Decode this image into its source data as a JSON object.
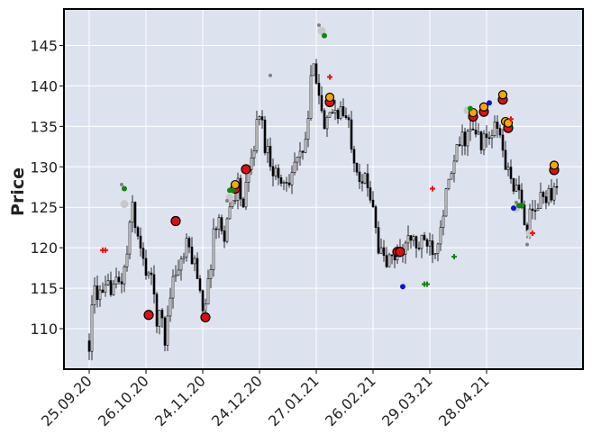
{
  "chart_data": {
    "type": "candlestick",
    "ylabel": "Price",
    "ylim": [
      105.0,
      149.5
    ],
    "y_ticks": [
      110,
      115,
      120,
      125,
      130,
      135,
      140,
      145
    ],
    "x_tick_labels": [
      "25.09.20",
      "26.10.20",
      "24.11.20",
      "24.12.20",
      "27.01.21",
      "26.02.21",
      "29.03.21",
      "28.04.21"
    ],
    "x_tick_index": [
      0,
      21,
      42,
      63,
      84,
      105,
      126,
      147
    ],
    "n_candles": 174,
    "price_path": [
      {
        "i": 0,
        "p": 108.5
      },
      {
        "i": 2,
        "p": 115
      },
      {
        "i": 5,
        "p": 113.5
      },
      {
        "i": 8,
        "p": 115.5
      },
      {
        "i": 11,
        "p": 115.5
      },
      {
        "i": 13,
        "p": 117
      },
      {
        "i": 15,
        "p": 122
      },
      {
        "i": 16,
        "p": 125.5
      },
      {
        "i": 18,
        "p": 121
      },
      {
        "i": 20,
        "p": 118
      },
      {
        "i": 22,
        "p": 117
      },
      {
        "i": 24,
        "p": 114
      },
      {
        "i": 25,
        "p": 111.5
      },
      {
        "i": 27,
        "p": 111
      },
      {
        "i": 28,
        "p": 108.5
      },
      {
        "i": 30,
        "p": 115
      },
      {
        "i": 32,
        "p": 117
      },
      {
        "i": 34,
        "p": 118
      },
      {
        "i": 36,
        "p": 120
      },
      {
        "i": 38,
        "p": 119
      },
      {
        "i": 40,
        "p": 117
      },
      {
        "i": 42,
        "p": 113
      },
      {
        "i": 44,
        "p": 115
      },
      {
        "i": 46,
        "p": 122
      },
      {
        "i": 48,
        "p": 123
      },
      {
        "i": 50,
        "p": 122
      },
      {
        "i": 53,
        "p": 126
      },
      {
        "i": 55,
        "p": 128
      },
      {
        "i": 57,
        "p": 125
      },
      {
        "i": 60,
        "p": 131
      },
      {
        "i": 63,
        "p": 137
      },
      {
        "i": 65,
        "p": 133
      },
      {
        "i": 68,
        "p": 130
      },
      {
        "i": 71,
        "p": 128
      },
      {
        "i": 74,
        "p": 129
      },
      {
        "i": 77,
        "p": 131
      },
      {
        "i": 79,
        "p": 131
      },
      {
        "i": 81,
        "p": 136
      },
      {
        "i": 83,
        "p": 144
      },
      {
        "i": 85,
        "p": 139
      },
      {
        "i": 87,
        "p": 134
      },
      {
        "i": 90,
        "p": 137
      },
      {
        "i": 93,
        "p": 137
      },
      {
        "i": 96,
        "p": 135
      },
      {
        "i": 99,
        "p": 130
      },
      {
        "i": 102,
        "p": 128
      },
      {
        "i": 105,
        "p": 126
      },
      {
        "i": 107,
        "p": 120
      },
      {
        "i": 110,
        "p": 118
      },
      {
        "i": 113,
        "p": 119
      },
      {
        "i": 116,
        "p": 120
      },
      {
        "i": 119,
        "p": 121
      },
      {
        "i": 122,
        "p": 120
      },
      {
        "i": 125,
        "p": 121
      },
      {
        "i": 128,
        "p": 120
      },
      {
        "i": 131,
        "p": 125
      },
      {
        "i": 134,
        "p": 129
      },
      {
        "i": 137,
        "p": 133
      },
      {
        "i": 140,
        "p": 134
      },
      {
        "i": 143,
        "p": 134
      },
      {
        "i": 146,
        "p": 133
      },
      {
        "i": 149,
        "p": 134
      },
      {
        "i": 151,
        "p": 135
      },
      {
        "i": 153,
        "p": 132
      },
      {
        "i": 155,
        "p": 129
      },
      {
        "i": 157,
        "p": 128
      },
      {
        "i": 160,
        "p": 125
      },
      {
        "i": 162,
        "p": 123
      },
      {
        "i": 164,
        "p": 124
      },
      {
        "i": 167,
        "p": 126
      },
      {
        "i": 170,
        "p": 127
      },
      {
        "i": 173,
        "p": 127
      }
    ],
    "markers": {
      "red_circle": [
        [
          22,
          111.7
        ],
        [
          32,
          123.3
        ],
        [
          43,
          111.4
        ],
        [
          54,
          127.3
        ],
        [
          58,
          129.7
        ],
        [
          89,
          138.0
        ],
        [
          114,
          119.5
        ],
        [
          115,
          119.5
        ],
        [
          142,
          136.2
        ],
        [
          146,
          136.8
        ],
        [
          153,
          138.3
        ],
        [
          155,
          134.8
        ],
        [
          172,
          129.6
        ]
      ],
      "orange_circle": [
        [
          54,
          127.8
        ],
        [
          89,
          138.6
        ],
        [
          142,
          136.7
        ],
        [
          146,
          137.4
        ],
        [
          153,
          138.9
        ],
        [
          154,
          135.6
        ],
        [
          155,
          135.4
        ],
        [
          172,
          130.2
        ]
      ],
      "gray_circle": [
        [
          13,
          125.4
        ],
        [
          52,
          126.2
        ],
        [
          86,
          146.8
        ],
        [
          140,
          137.0
        ],
        [
          158,
          124.9
        ],
        [
          163,
          121.8
        ]
      ],
      "green_dot": [
        [
          13,
          127.3
        ],
        [
          52,
          127.1
        ],
        [
          53,
          127.1
        ],
        [
          87,
          146.2
        ],
        [
          141,
          137.2
        ],
        [
          159,
          125.2
        ],
        [
          160,
          125.2
        ]
      ],
      "blue_dot": [
        [
          116,
          115.2
        ],
        [
          148,
          137.9
        ],
        [
          157,
          124.9
        ]
      ],
      "small_gray_dot": [
        [
          12,
          127.8
        ],
        [
          51,
          125.8
        ],
        [
          67,
          141.3
        ],
        [
          85,
          147.5
        ],
        [
          158,
          125.6
        ],
        [
          162,
          120.4
        ]
      ],
      "red_plus": [
        [
          5,
          119.7
        ],
        [
          6,
          119.7
        ],
        [
          89,
          141.1
        ],
        [
          127,
          127.3
        ],
        [
          156,
          135.9
        ],
        [
          164,
          121.8
        ]
      ],
      "green_plus": [
        [
          124,
          115.5
        ],
        [
          125,
          115.5
        ],
        [
          135,
          118.9
        ]
      ]
    }
  }
}
